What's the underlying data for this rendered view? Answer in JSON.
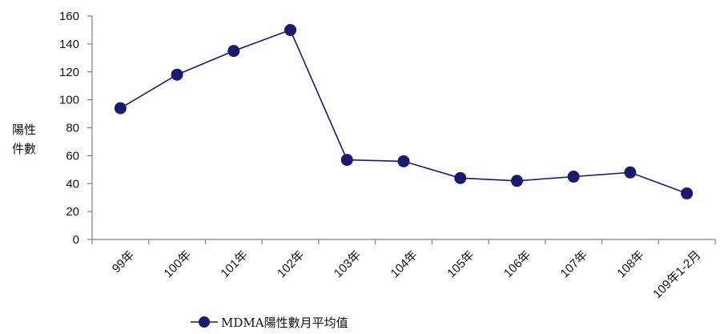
{
  "chart_data": {
    "type": "line",
    "categories": [
      "99年",
      "100年",
      "101年",
      "102年",
      "103年",
      "104年",
      "105年",
      "106年",
      "107年",
      "108年",
      "109年1-2月"
    ],
    "series": [
      {
        "name": "MDMA陽性數月平均值",
        "values": [
          94,
          118,
          135,
          150,
          57,
          56,
          44,
          42,
          45,
          48,
          33
        ]
      }
    ],
    "ylabel": [
      "陽性",
      "件數"
    ],
    "ylim": [
      0,
      160
    ],
    "yticks": [
      0,
      20,
      40,
      60,
      80,
      100,
      120,
      140,
      160
    ],
    "grid": false,
    "legend": "bottom-left",
    "colors": {
      "series": "#1a1a6e",
      "axis": "#7f7f7f"
    }
  }
}
